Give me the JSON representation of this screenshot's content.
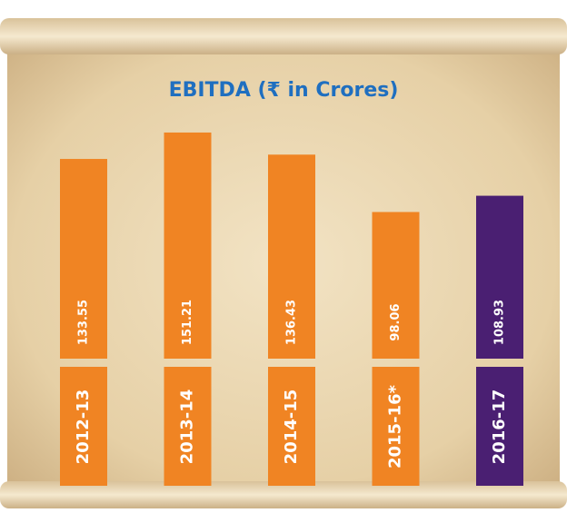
{
  "chart_data": {
    "type": "bar",
    "title": "EBITDA (₹ in Crores)",
    "categories": [
      "2012-13",
      "2013-14",
      "2014-15",
      "2015-16*",
      "2016-17"
    ],
    "values": [
      133.55,
      151.21,
      136.43,
      98.06,
      108.93
    ],
    "colors": [
      "#f08423",
      "#f08423",
      "#f08423",
      "#f08423",
      "#4a1f72"
    ]
  }
}
